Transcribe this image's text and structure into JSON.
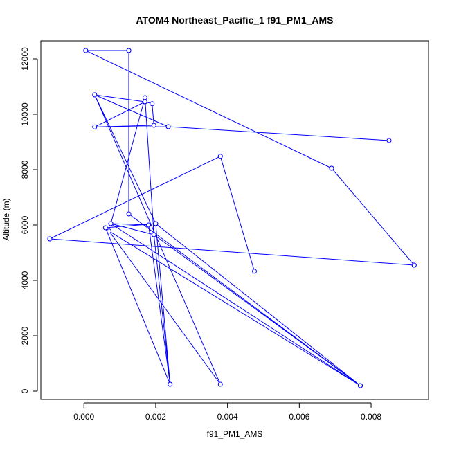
{
  "chart_data": {
    "type": "line",
    "title": "ATOM4 Northeast_Pacific_1 f91_PM1_AMS",
    "xlabel": "f91_PM1_AMS",
    "ylabel": "Altitude (m)",
    "xlim": [
      -0.0012,
      0.0096
    ],
    "ylim": [
      -300,
      12650
    ],
    "xticks": [
      0.0,
      0.002,
      0.004,
      0.006,
      0.008
    ],
    "xtick_labels": [
      "0.000",
      "0.002",
      "0.004",
      "0.006",
      "0.008"
    ],
    "yticks": [
      0,
      2000,
      4000,
      6000,
      8000,
      10000,
      12000
    ],
    "ytick_labels": [
      "0",
      "2000",
      "4000",
      "6000",
      "8000",
      "10000",
      "12000"
    ],
    "grid": false,
    "series": [
      {
        "color": "#0000ff",
        "markers": "open-circle",
        "points": [
          {
            "x": 0.00125,
            "y": 12300
          },
          {
            "x": 5e-05,
            "y": 12300
          },
          {
            "x": 0.0069,
            "y": 8050
          },
          {
            "x": 0.0092,
            "y": 4550
          },
          {
            "x": -0.00095,
            "y": 5500
          },
          {
            "x": 0.0038,
            "y": 8480
          },
          {
            "x": 0.00475,
            "y": 4330
          },
          {
            "x": 0.0038,
            "y": 8480
          },
          {
            "x": -0.00095,
            "y": 5500
          },
          {
            "x": 0.0092,
            "y": 4550
          },
          {
            "x": 0.0069,
            "y": 8050
          },
          {
            "x": 5e-05,
            "y": 12300
          },
          {
            "x": 0.00125,
            "y": 12300
          },
          {
            "x": 0.00125,
            "y": 6400
          },
          {
            "x": 0.0077,
            "y": 200
          },
          {
            "x": 0.00075,
            "y": 6050
          },
          {
            "x": 0.0018,
            "y": 6000
          },
          {
            "x": 0.0024,
            "y": 250
          },
          {
            "x": 0.00195,
            "y": 5650
          },
          {
            "x": 0.00075,
            "y": 6050
          },
          {
            "x": 0.0017,
            "y": 10600
          },
          {
            "x": 0.00195,
            "y": 5650
          },
          {
            "x": 0.0077,
            "y": 200
          },
          {
            "x": 0.002,
            "y": 6050
          },
          {
            "x": 0.0006,
            "y": 5900
          },
          {
            "x": 0.0024,
            "y": 250
          },
          {
            "x": 0.002,
            "y": 6050
          },
          {
            "x": 0.0003,
            "y": 10700
          },
          {
            "x": 0.0017,
            "y": 10450
          },
          {
            "x": 0.0019,
            "y": 10380
          },
          {
            "x": 0.00195,
            "y": 9600
          },
          {
            "x": 0.0003,
            "y": 9540
          },
          {
            "x": 0.0017,
            "y": 10450
          },
          {
            "x": 0.0003,
            "y": 9540
          },
          {
            "x": 0.00235,
            "y": 9550
          },
          {
            "x": 0.0085,
            "y": 9050
          },
          {
            "x": 0.00235,
            "y": 9550
          },
          {
            "x": 0.0003,
            "y": 10700
          },
          {
            "x": 0.0038,
            "y": 250
          },
          {
            "x": 0.0007,
            "y": 5780
          },
          {
            "x": 0.0077,
            "y": 200
          }
        ]
      }
    ]
  }
}
